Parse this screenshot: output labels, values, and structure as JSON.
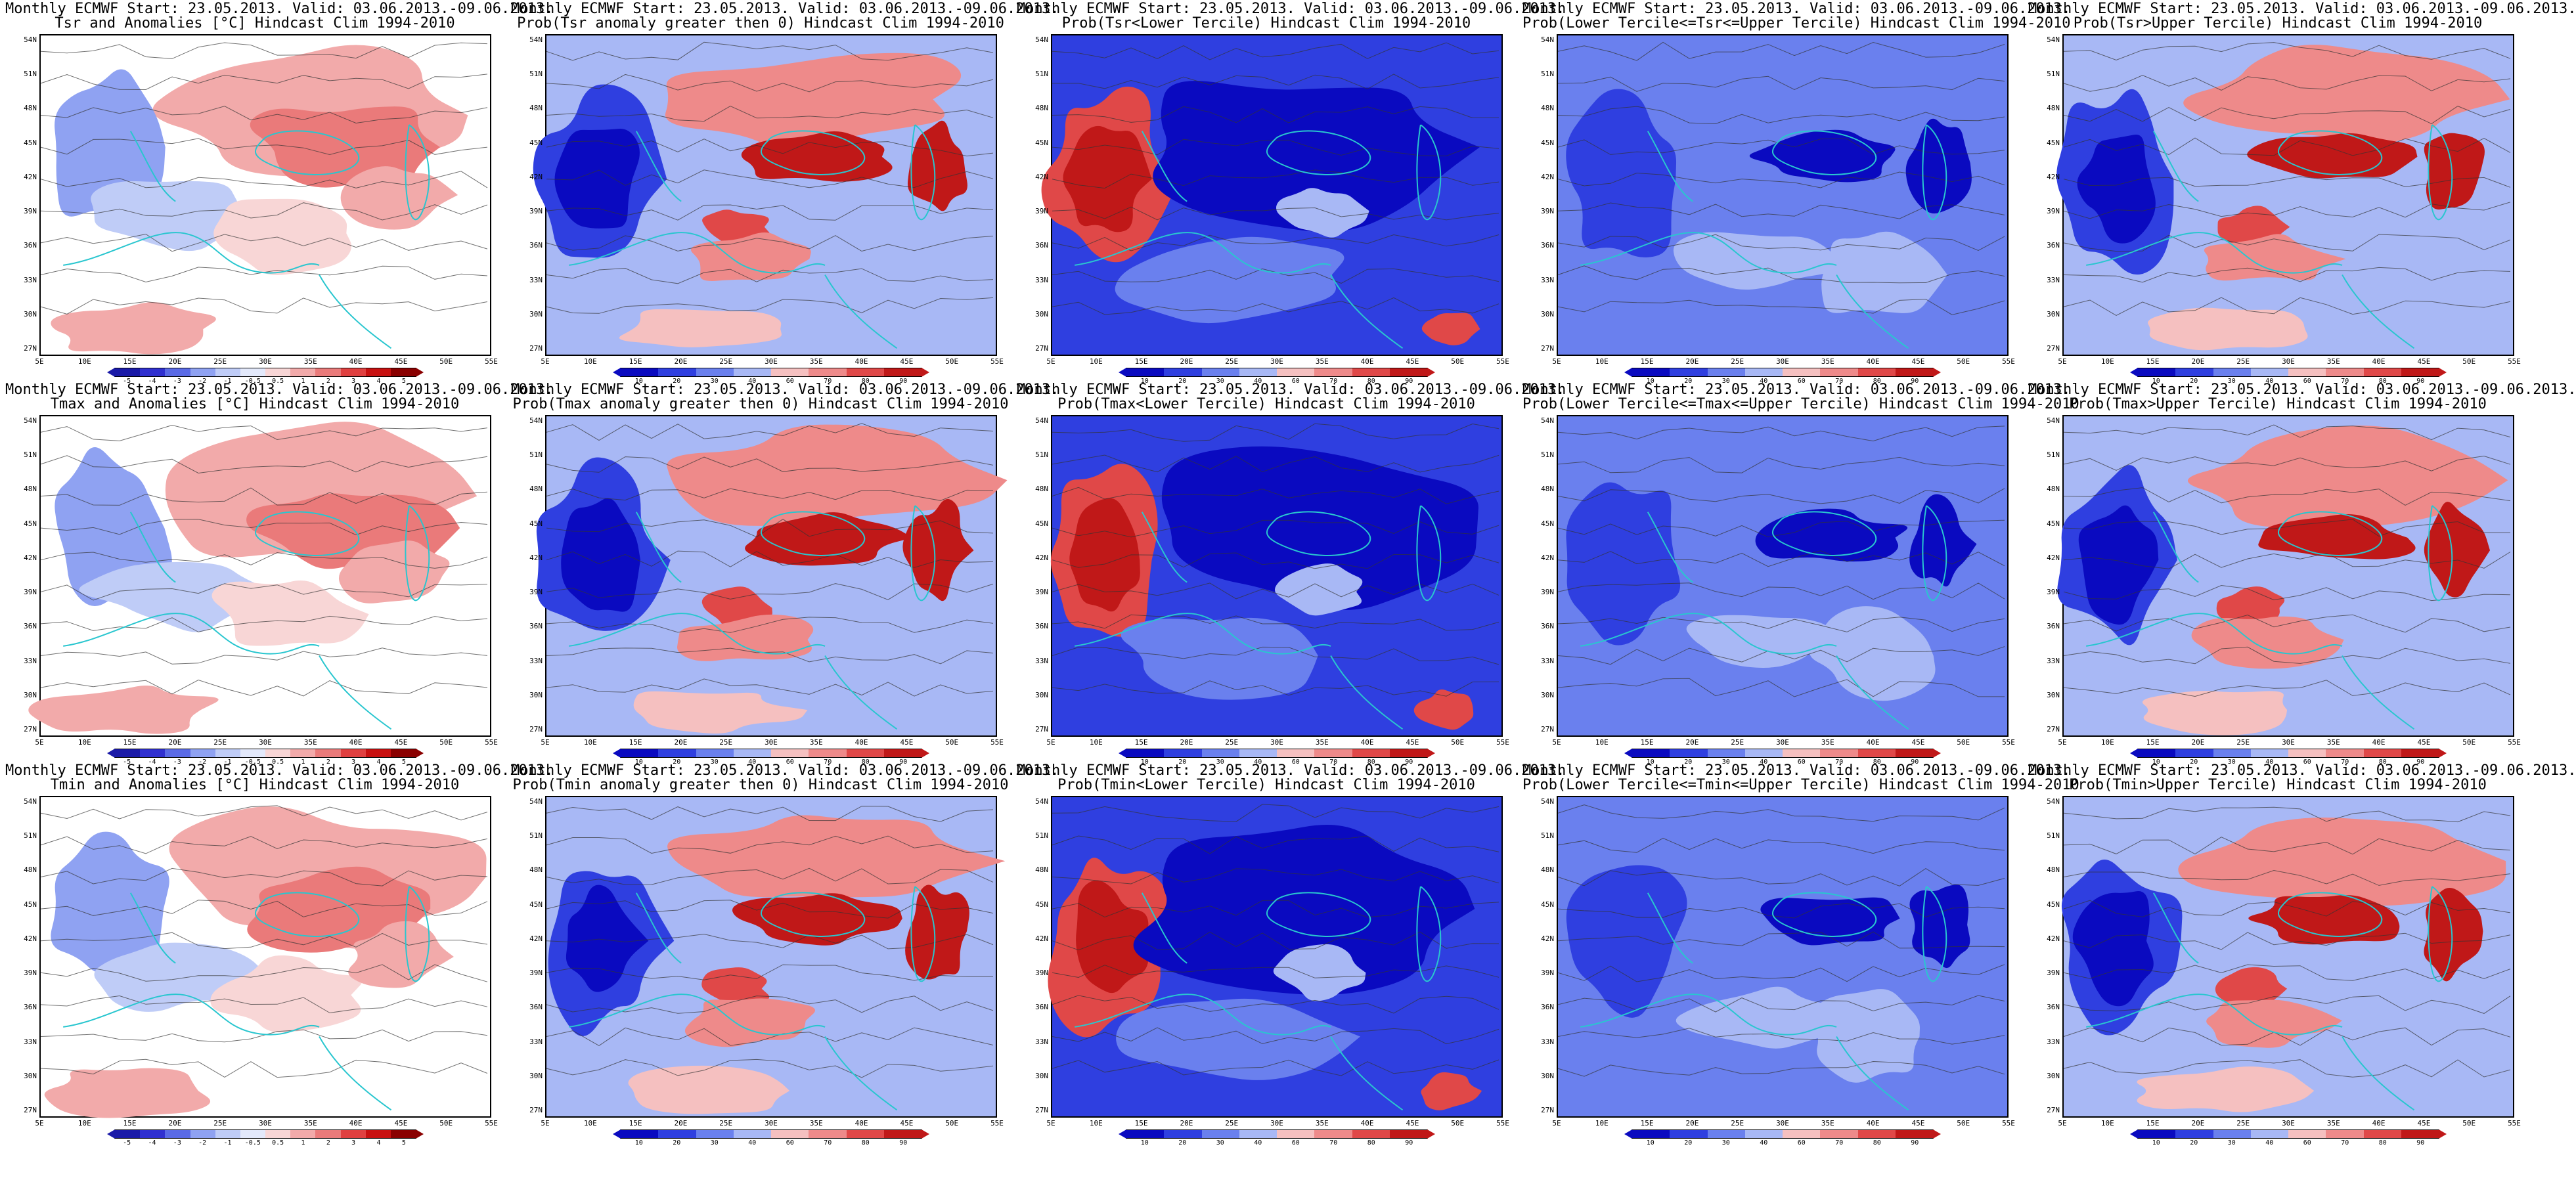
{
  "panels": [
    {
      "line1": "Monthly ECMWF Start: 23.05.2013. Valid: 03.06.2013.-09.06.2013.",
      "line2": "Tsr and Anomalies [°C] Hindcast Clim 1994-2010",
      "kind": "anomaly",
      "colorbar": [
        "-5",
        "-4",
        "-3",
        "-2",
        "-1",
        "-0.5",
        "0.5",
        "1",
        "2",
        "3",
        "4",
        "5"
      ]
    },
    {
      "line1": "Monthly ECMWF Start: 23.05.2013. Valid: 03.06.2013.-09.06.2013.",
      "line2": "Prob(Tsr anomaly greater then 0) Hindcast Clim 1994-2010",
      "kind": "prob-high",
      "colorbar": [
        "10",
        "20",
        "30",
        "40",
        "60",
        "70",
        "80",
        "90"
      ]
    },
    {
      "line1": "Monthly ECMWF Start: 23.05.2013. Valid: 03.06.2013.-09.06.2013.",
      "line2": "Prob(Tsr<Lower Tercile) Hindcast Clim 1994-2010",
      "kind": "prob-low",
      "colorbar": [
        "10",
        "20",
        "30",
        "40",
        "60",
        "70",
        "80",
        "90"
      ]
    },
    {
      "line1": "Monthly ECMWF Start: 23.05.2013. Valid: 03.06.2013.-09.06.2013.",
      "line2": "Prob(Lower Tercile<=Tsr<=Upper Tercile) Hindcast Clim 1994-2010",
      "kind": "prob-mid",
      "colorbar": [
        "10",
        "20",
        "30",
        "40",
        "60",
        "70",
        "80",
        "90"
      ]
    },
    {
      "line1": "Monthly ECMWF Start: 23.05.2013. Valid: 03.06.2013.-09.06.2013.",
      "line2": "Prob(Tsr>Upper Tercile) Hindcast Clim 1994-2010",
      "kind": "prob-high",
      "colorbar": [
        "10",
        "20",
        "30",
        "40",
        "60",
        "70",
        "80",
        "90"
      ]
    },
    {
      "line1": "Monthly ECMWF Start: 23.05.2013. Valid: 03.06.2013.-09.06.2013.",
      "line2": "Tmax and Anomalies [°C] Hindcast Clim 1994-2010",
      "kind": "anomaly",
      "colorbar": [
        "-5",
        "-4",
        "-3",
        "-2",
        "-1",
        "-0.5",
        "0.5",
        "1",
        "2",
        "3",
        "4",
        "5"
      ]
    },
    {
      "line1": "Monthly ECMWF Start: 23.05.2013. Valid: 03.06.2013.-09.06.2013.",
      "line2": "Prob(Tmax anomaly greater then 0) Hindcast Clim 1994-2010",
      "kind": "prob-high",
      "colorbar": [
        "10",
        "20",
        "30",
        "40",
        "60",
        "70",
        "80",
        "90"
      ]
    },
    {
      "line1": "Monthly ECMWF Start: 23.05.2013. Valid: 03.06.2013.-09.06.2013.",
      "line2": "Prob(Tmax<Lower Tercile) Hindcast Clim 1994-2010",
      "kind": "prob-low",
      "colorbar": [
        "10",
        "20",
        "30",
        "40",
        "60",
        "70",
        "80",
        "90"
      ]
    },
    {
      "line1": "Monthly ECMWF Start: 23.05.2013. Valid: 03.06.2013.-09.06.2013.",
      "line2": "Prob(Lower Tercile<=Tmax<=Upper Tercile) Hindcast Clim 1994-2010",
      "kind": "prob-mid",
      "colorbar": [
        "10",
        "20",
        "30",
        "40",
        "60",
        "70",
        "80",
        "90"
      ]
    },
    {
      "line1": "Monthly ECMWF Start: 23.05.2013. Valid: 03.06.2013.-09.06.2013.",
      "line2": "Prob(Tmax>Upper Tercile) Hindcast Clim 1994-2010",
      "kind": "prob-high",
      "colorbar": [
        "10",
        "20",
        "30",
        "40",
        "60",
        "70",
        "80",
        "90"
      ]
    },
    {
      "line1": "Monthly ECMWF Start: 23.05.2013. Valid: 03.06.2013.-09.06.2013.",
      "line2": "Tmin and Anomalies [°C] Hindcast Clim 1994-2010",
      "kind": "anomaly",
      "colorbar": [
        "-5",
        "-4",
        "-3",
        "-2",
        "-1",
        "-0.5",
        "0.5",
        "1",
        "2",
        "3",
        "4",
        "5"
      ]
    },
    {
      "line1": "Monthly ECMWF Start: 23.05.2013. Valid: 03.06.2013.-09.06.2013.",
      "line2": "Prob(Tmin anomaly greater then 0) Hindcast Clim 1994-2010",
      "kind": "prob-high",
      "colorbar": [
        "10",
        "20",
        "30",
        "40",
        "60",
        "70",
        "80",
        "90"
      ]
    },
    {
      "line1": "Monthly ECMWF Start: 23.05.2013. Valid: 03.06.2013.-09.06.2013.",
      "line2": "Prob(Tmin<Lower Tercile) Hindcast Clim 1994-2010",
      "kind": "prob-low",
      "colorbar": [
        "10",
        "20",
        "30",
        "40",
        "60",
        "70",
        "80",
        "90"
      ]
    },
    {
      "line1": "Monthly ECMWF Start: 23.05.2013. Valid: 03.06.2013.-09.06.2013.",
      "line2": "Prob(Lower Tercile<=Tmin<=Upper Tercile) Hindcast Clim 1994-2010",
      "kind": "prob-mid",
      "colorbar": [
        "10",
        "20",
        "30",
        "40",
        "60",
        "70",
        "80",
        "90"
      ]
    },
    {
      "line1": "Monthly ECMWF Start: 23.05.2013. Valid: 03.06.2013.-09.06.2013.",
      "line2": "Prob(Tmin>Upper Tercile) Hindcast Clim 1994-2010",
      "kind": "prob-high",
      "colorbar": [
        "10",
        "20",
        "30",
        "40",
        "60",
        "70",
        "80",
        "90"
      ]
    }
  ],
  "axes": {
    "lat_labels": [
      "54N",
      "51N",
      "48N",
      "45N",
      "42N",
      "39N",
      "36N",
      "33N",
      "30N",
      "27N"
    ],
    "lon_labels": [
      "5E",
      "10E",
      "15E",
      "20E",
      "25E",
      "30E",
      "35E",
      "40E",
      "45E",
      "50E",
      "55E"
    ]
  },
  "colors": {
    "anomaly": [
      "#1a1aa8",
      "#3030d0",
      "#5a6ae6",
      "#8fa2f2",
      "#bfccf7",
      "#e3e9fb",
      "#f8d6d6",
      "#f2aaaa",
      "#ea7a7a",
      "#e04040",
      "#c81010",
      "#8a0000"
    ],
    "prob": [
      "#0a0ac0",
      "#2f3fe0",
      "#6a80ee",
      "#a8b8f5",
      "#f5c0c0",
      "#ee8a8a",
      "#e04848",
      "#c01818"
    ],
    "coast": "#29c6cf",
    "contour": "#333333",
    "land_white": "#ffffff"
  }
}
